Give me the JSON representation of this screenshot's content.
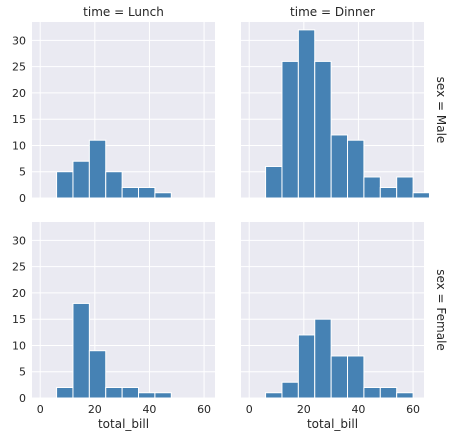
{
  "colors": {
    "panel_bg": "#eaeaf2",
    "grid": "#ffffff",
    "bar_fill": "#4682b4",
    "bar_edge": "#ffffff",
    "text": "#262626"
  },
  "chart_data": {
    "type": "bar",
    "layout": "facet-grid",
    "xlabel": "total_bill",
    "xlim": [
      -3,
      64
    ],
    "ylim": [
      0,
      33.5
    ],
    "xticks": [
      0,
      20,
      40,
      60
    ],
    "yticks": [
      0,
      5,
      10,
      15,
      20,
      25,
      30
    ],
    "bin_width": 6,
    "col_titles": [
      "time = Lunch",
      "time = Dinner"
    ],
    "row_titles": [
      "sex = Male",
      "sex = Female"
    ],
    "panels": [
      {
        "row": 0,
        "col": 0,
        "title": "time = Lunch",
        "bins": [
          [
            6,
            12,
            5
          ],
          [
            12,
            18,
            7
          ],
          [
            18,
            24,
            11
          ],
          [
            24,
            30,
            5
          ],
          [
            30,
            36,
            2
          ],
          [
            36,
            42,
            2
          ],
          [
            42,
            48,
            1
          ]
        ]
      },
      {
        "row": 0,
        "col": 1,
        "title": "time = Dinner",
        "bins": [
          [
            6,
            12,
            6
          ],
          [
            12,
            18,
            26
          ],
          [
            18,
            24,
            32
          ],
          [
            24,
            30,
            26
          ],
          [
            30,
            36,
            12
          ],
          [
            36,
            42,
            11
          ],
          [
            42,
            48,
            4
          ],
          [
            48,
            54,
            2
          ],
          [
            54,
            60,
            4
          ],
          [
            60,
            66,
            1
          ]
        ]
      },
      {
        "row": 1,
        "col": 0,
        "bins": [
          [
            6,
            12,
            2
          ],
          [
            12,
            18,
            18
          ],
          [
            18,
            24,
            9
          ],
          [
            24,
            30,
            2
          ],
          [
            30,
            36,
            2
          ],
          [
            36,
            42,
            1
          ],
          [
            42,
            48,
            1
          ]
        ]
      },
      {
        "row": 1,
        "col": 1,
        "bins": [
          [
            6,
            12,
            1
          ],
          [
            12,
            18,
            3
          ],
          [
            18,
            24,
            12
          ],
          [
            24,
            30,
            15
          ],
          [
            30,
            36,
            8
          ],
          [
            36,
            42,
            8
          ],
          [
            42,
            48,
            2
          ],
          [
            48,
            54,
            2
          ],
          [
            54,
            60,
            1
          ]
        ]
      }
    ]
  }
}
